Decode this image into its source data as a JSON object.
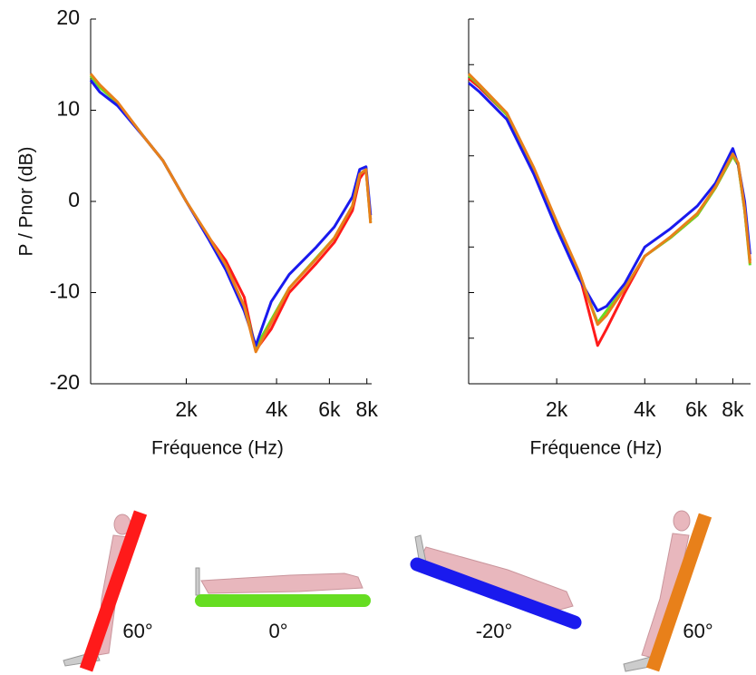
{
  "chart_data": [
    {
      "type": "line",
      "x_label": "Fréquence (Hz)",
      "y_label": "P / Pnor (dB)",
      "log_x": true,
      "show_ytick_labels": true,
      "xlim": [
        960,
        8300
      ],
      "ylim": [
        -20,
        20
      ],
      "xticks": [
        {
          "value": 2000,
          "label": "2k"
        },
        {
          "value": 4000,
          "label": "4k"
        },
        {
          "value": 6000,
          "label": "6k"
        },
        {
          "value": 8000,
          "label": "8k"
        }
      ],
      "yticks": [
        -20,
        -10,
        0,
        10,
        20
      ],
      "x": [
        960,
        1030,
        1180,
        1450,
        1670,
        2000,
        2360,
        2710,
        3120,
        3410,
        3840,
        4410,
        5430,
        6230,
        7160,
        7570,
        7950,
        8230
      ],
      "series": [
        {
          "name": "60°",
          "color": "#ff1a1a",
          "values": [
            13.8,
            12.7,
            10.8,
            7,
            4.5,
            0,
            -3.8,
            -6.5,
            -10.5,
            -16.3,
            -14,
            -10,
            -6.8,
            -4.5,
            -1,
            2.5,
            3.5,
            -2
          ]
        },
        {
          "name": "0°",
          "color": "#66dd22",
          "values": [
            13.8,
            12.5,
            10.8,
            7,
            4.5,
            0,
            -3.8,
            -7,
            -11.5,
            -16,
            -13,
            -9.5,
            -6.2,
            -4,
            -0.5,
            3,
            3.5,
            -2.3
          ]
        },
        {
          "name": "-20°",
          "color": "#1a1aee",
          "values": [
            13.3,
            12,
            10.5,
            7,
            4.5,
            0,
            -4,
            -7.5,
            -12,
            -15.8,
            -11,
            -8,
            -5,
            -2.8,
            0.5,
            3.5,
            3.8,
            -1.5
          ]
        },
        {
          "name": "60°",
          "color": "#e8801a",
          "values": [
            14,
            12.8,
            10.9,
            7,
            4.5,
            0,
            -3.7,
            -7,
            -11.5,
            -16.5,
            -13.3,
            -9.5,
            -6.3,
            -4,
            -0.5,
            3,
            3.5,
            -2.4
          ]
        }
      ]
    },
    {
      "type": "line",
      "x_label": "Fréquence (Hz)",
      "log_x": true,
      "show_ytick_labels": false,
      "xlim": [
        1000,
        9200
      ],
      "ylim": [
        -20,
        20
      ],
      "xticks": [
        {
          "value": 2000,
          "label": "2k"
        },
        {
          "value": 4000,
          "label": "4k"
        },
        {
          "value": 6000,
          "label": "6k"
        },
        {
          "value": 8000,
          "label": "8k"
        }
      ],
      "yticks": [
        -20,
        -15,
        -10,
        -5,
        0,
        5,
        10,
        15,
        20
      ],
      "x": [
        1000,
        1090,
        1350,
        1670,
        2000,
        2390,
        2760,
        2960,
        3420,
        4000,
        4890,
        6050,
        6980,
        8000,
        8350,
        8780,
        9160
      ],
      "series": [
        {
          "color": "#ff1a1a",
          "values": [
            13.5,
            12.5,
            9.5,
            3.5,
            -2.5,
            -8,
            -15.8,
            -14,
            -10,
            -6,
            -4,
            -1.5,
            1.5,
            5,
            4,
            -1,
            -6.5
          ]
        },
        {
          "color": "#66dd22",
          "values": [
            13.8,
            12.7,
            9.5,
            3.5,
            -2.5,
            -8,
            -13.3,
            -12,
            -9.5,
            -6,
            -4,
            -1.5,
            1.5,
            5,
            4,
            -1,
            -7
          ]
        },
        {
          "color": "#1a1aee",
          "values": [
            13,
            12,
            9,
            3,
            -3,
            -8.5,
            -12,
            -11.5,
            -9,
            -5,
            -3,
            -0.5,
            2,
            5.8,
            4,
            0,
            -5.8
          ]
        },
        {
          "color": "#e8801a",
          "values": [
            14,
            12.8,
            9.7,
            3.7,
            -2.2,
            -7.8,
            -13.5,
            -12.5,
            -9.5,
            -6,
            -3.9,
            -1.3,
            1.6,
            5.2,
            4.2,
            -0.8,
            -6.8
          ]
        }
      ]
    }
  ]
}
